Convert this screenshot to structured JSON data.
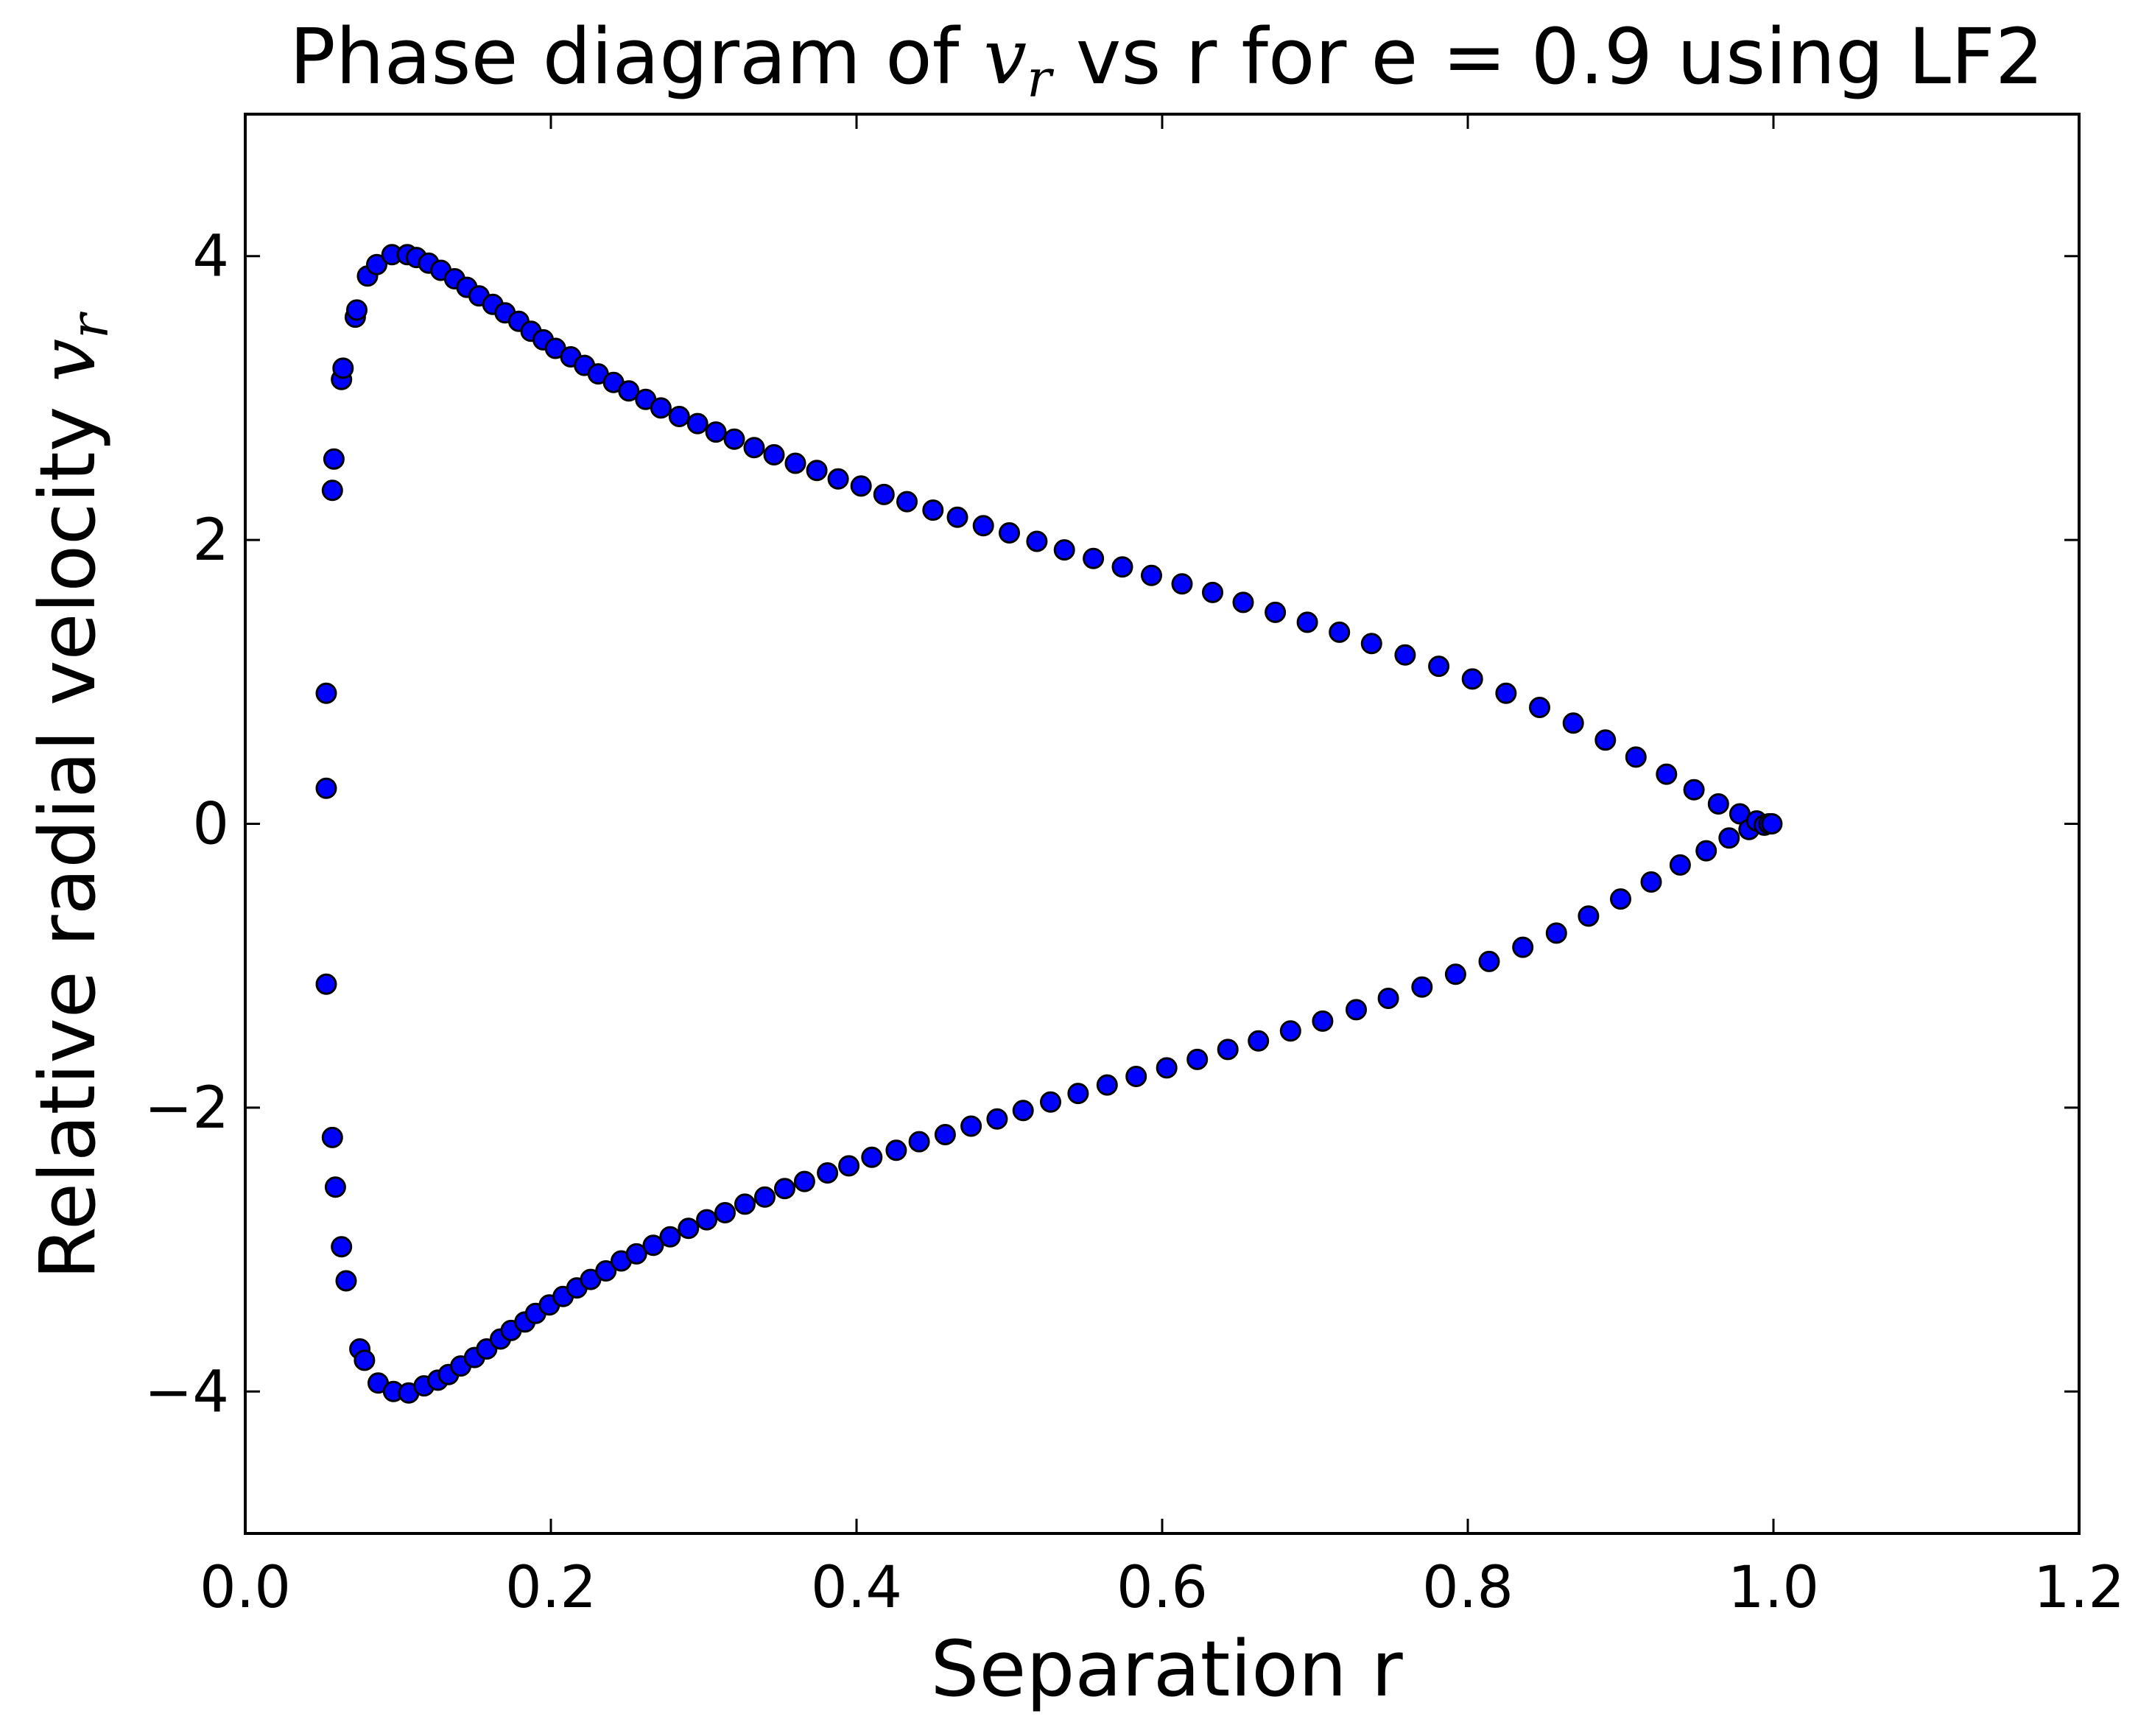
{
  "chart_data": {
    "type": "scatter",
    "title": "Phase diagram of v_r vs r for e = 0.9 using LF2",
    "title_parts": {
      "before": "Phase diagram of ",
      "math_main": "v",
      "math_sub": "r",
      "after": " vs r for e = 0.9 using LF2"
    },
    "xlabel": "Separation r",
    "ylabel": "Relative radial velocity v_r",
    "ylabel_parts": {
      "before": "Relative radial velocity ",
      "math_main": "v",
      "math_sub": "r"
    },
    "xlim": [
      0.0,
      1.2
    ],
    "ylim": [
      -5,
      5
    ],
    "xticks": [
      0.0,
      0.2,
      0.4,
      0.6,
      0.8,
      1.0,
      1.2
    ],
    "xtick_labels": [
      "0.0",
      "0.2",
      "0.4",
      "0.6",
      "0.8",
      "1.0",
      "1.2"
    ],
    "yticks": [
      -4,
      -2,
      0,
      2,
      4
    ],
    "ytick_labels": [
      "−4",
      "−2",
      "0",
      "2",
      "4"
    ],
    "grid": false,
    "legend": "none",
    "marker_color": "#0000ff",
    "marker_edge_color": "#000000",
    "series": [
      {
        "name": "LF2",
        "points": [
          [
            0.053,
            0.25
          ],
          [
            0.053,
            0.92
          ],
          [
            0.053,
            -1.13
          ],
          [
            0.057,
            2.35
          ],
          [
            0.058,
            2.57
          ],
          [
            0.057,
            -2.21
          ],
          [
            0.059,
            -2.56
          ],
          [
            0.063,
            3.13
          ],
          [
            0.064,
            3.21
          ],
          [
            0.063,
            -2.98
          ],
          [
            0.066,
            -3.22
          ],
          [
            0.072,
            3.57
          ],
          [
            0.073,
            3.62
          ],
          [
            0.075,
            -3.7
          ],
          [
            0.078,
            -3.78
          ],
          [
            0.08,
            3.86
          ],
          [
            0.086,
            3.94
          ],
          [
            0.087,
            -3.94
          ],
          [
            0.096,
            4.01
          ],
          [
            0.097,
            -4.0
          ],
          [
            0.106,
            4.01
          ],
          [
            0.107,
            -4.01
          ],
          [
            0.112,
            3.99
          ],
          [
            0.117,
            -3.96
          ],
          [
            0.12,
            3.95
          ],
          [
            0.126,
            -3.92
          ],
          [
            0.128,
            3.9
          ],
          [
            0.133,
            -3.88
          ],
          [
            0.137,
            3.84
          ],
          [
            0.141,
            -3.82
          ],
          [
            0.145,
            3.78
          ],
          [
            0.15,
            -3.76
          ],
          [
            0.153,
            3.72
          ],
          [
            0.158,
            -3.7
          ],
          [
            0.162,
            3.66
          ],
          [
            0.167,
            -3.63
          ],
          [
            0.17,
            3.6
          ],
          [
            0.174,
            -3.57
          ],
          [
            0.179,
            3.54
          ],
          [
            0.183,
            -3.51
          ],
          [
            0.187,
            3.47
          ],
          [
            0.19,
            -3.45
          ],
          [
            0.195,
            3.41
          ],
          [
            0.199,
            -3.39
          ],
          [
            0.203,
            3.35
          ],
          [
            0.208,
            -3.33
          ],
          [
            0.213,
            3.29
          ],
          [
            0.217,
            -3.27
          ],
          [
            0.222,
            3.23
          ],
          [
            0.226,
            -3.21
          ],
          [
            0.231,
            3.17
          ],
          [
            0.236,
            -3.15
          ],
          [
            0.241,
            3.11
          ],
          [
            0.246,
            -3.08
          ],
          [
            0.251,
            3.05
          ],
          [
            0.256,
            -3.03
          ],
          [
            0.262,
            2.99
          ],
          [
            0.267,
            -2.97
          ],
          [
            0.272,
            2.93
          ],
          [
            0.278,
            -2.91
          ],
          [
            0.284,
            2.87
          ],
          [
            0.29,
            -2.85
          ],
          [
            0.296,
            2.82
          ],
          [
            0.302,
            -2.79
          ],
          [
            0.308,
            2.76
          ],
          [
            0.314,
            -2.74
          ],
          [
            0.32,
            2.71
          ],
          [
            0.327,
            -2.68
          ],
          [
            0.333,
            2.65
          ],
          [
            0.34,
            -2.63
          ],
          [
            0.346,
            2.6
          ],
          [
            0.353,
            -2.57
          ],
          [
            0.36,
            2.54
          ],
          [
            0.366,
            -2.52
          ],
          [
            0.374,
            2.49
          ],
          [
            0.381,
            -2.46
          ],
          [
            0.388,
            2.43
          ],
          [
            0.395,
            -2.41
          ],
          [
            0.403,
            2.38
          ],
          [
            0.41,
            -2.35
          ],
          [
            0.418,
            2.32
          ],
          [
            0.426,
            -2.3
          ],
          [
            0.433,
            2.27
          ],
          [
            0.441,
            -2.24
          ],
          [
            0.45,
            2.21
          ],
          [
            0.458,
            -2.19
          ],
          [
            0.466,
            2.16
          ],
          [
            0.475,
            -2.13
          ],
          [
            0.483,
            2.1
          ],
          [
            0.492,
            -2.08
          ],
          [
            0.5,
            2.05
          ],
          [
            0.509,
            -2.02
          ],
          [
            0.518,
            1.99
          ],
          [
            0.527,
            -1.96
          ],
          [
            0.536,
            1.93
          ],
          [
            0.545,
            -1.9
          ],
          [
            0.555,
            1.87
          ],
          [
            0.564,
            -1.84
          ],
          [
            0.574,
            1.81
          ],
          [
            0.583,
            -1.78
          ],
          [
            0.593,
            1.75
          ],
          [
            0.603,
            -1.72
          ],
          [
            0.613,
            1.69
          ],
          [
            0.623,
            -1.66
          ],
          [
            0.633,
            1.63
          ],
          [
            0.643,
            -1.59
          ],
          [
            0.653,
            1.56
          ],
          [
            0.663,
            -1.53
          ],
          [
            0.674,
            1.49
          ],
          [
            0.684,
            -1.46
          ],
          [
            0.695,
            1.42
          ],
          [
            0.705,
            -1.39
          ],
          [
            0.716,
            1.35
          ],
          [
            0.727,
            -1.31
          ],
          [
            0.737,
            1.27
          ],
          [
            0.748,
            -1.23
          ],
          [
            0.759,
            1.19
          ],
          [
            0.77,
            -1.15
          ],
          [
            0.781,
            1.11
          ],
          [
            0.792,
            -1.06
          ],
          [
            0.803,
            1.02
          ],
          [
            0.814,
            -0.97
          ],
          [
            0.825,
            0.92
          ],
          [
            0.836,
            -0.87
          ],
          [
            0.847,
            0.82
          ],
          [
            0.858,
            -0.77
          ],
          [
            0.869,
            0.71
          ],
          [
            0.879,
            -0.65
          ],
          [
            0.89,
            0.59
          ],
          [
            0.9,
            -0.53
          ],
          [
            0.91,
            0.47
          ],
          [
            0.92,
            -0.41
          ],
          [
            0.93,
            0.35
          ],
          [
            0.939,
            -0.29
          ],
          [
            0.948,
            0.24
          ],
          [
            0.956,
            -0.19
          ],
          [
            0.964,
            0.14
          ],
          [
            0.971,
            -0.1
          ],
          [
            0.978,
            0.07
          ],
          [
            0.984,
            -0.04
          ],
          [
            0.989,
            0.02
          ],
          [
            0.994,
            -0.01
          ],
          [
            0.997,
            0.0
          ],
          [
            0.999,
            0.0
          ]
        ]
      }
    ]
  }
}
